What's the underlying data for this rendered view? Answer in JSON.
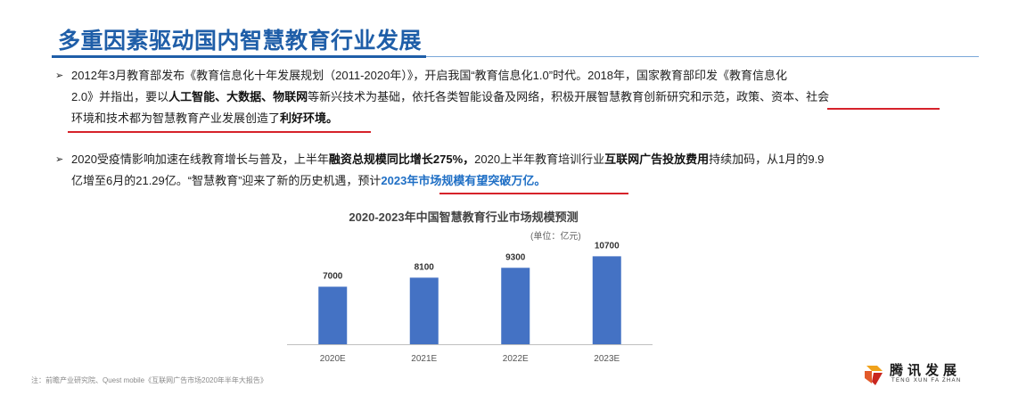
{
  "header": {
    "title": "多重因素驱动国内智慧教育行业发展"
  },
  "bullets": [
    {
      "marker": "➢",
      "line1": "2012年3月教育部发布《教育信息化十年发展规划（2011-2020年）》，开启我国“教育信息化1.0”时代。2018年，国家教育部印发《教育信息化",
      "line2_a": "2.0》并指出，要以",
      "line2_b1": "人工智能、大数据、物联网",
      "line2_c": "等新兴技术为基础，依托各类智能设备及网络，积极开展智慧教育创新研究和示范，",
      "line2_d": "政策、资本、社会",
      "line3_a": "环境和技术都为智慧教育产业发展创造了",
      "line3_b": "利好环境。"
    },
    {
      "marker": "➢",
      "line1_a": "2020受疫情影响加速在线教育增长与普及，上半年",
      "line1_b": "融资总规模同比增长275%，",
      "line1_c": "2020上半年教育培训行业",
      "line1_d": "互联网广告投放费用",
      "line1_e": "持续加码，从1月的9.9",
      "line2_a": "亿增至6月的21.29亿。“智慧教育”迎来了新的历史机遇，预计",
      "line2_b": "2023年市场规模有望突破万亿。"
    }
  ],
  "chart_data": {
    "type": "bar",
    "title": "2020-2023年中国智慧教育行业市场规模预测",
    "unit": "(单位：亿元)",
    "categories": [
      "2020E",
      "2021E",
      "2022E",
      "2023E"
    ],
    "values": [
      7000,
      8100,
      9300,
      10700
    ],
    "data_labels": [
      "7000",
      "8100",
      "9300",
      "10700"
    ],
    "ylim": [
      0,
      11500
    ],
    "grid": false,
    "color": "#4472c4"
  },
  "footnote": "注：前瞻产业研究院、Quest mobile《互联网广告市场2020年半年大报告》",
  "logo": {
    "cn": "腾讯发展",
    "en": "TENG XUN FA ZHAN"
  }
}
